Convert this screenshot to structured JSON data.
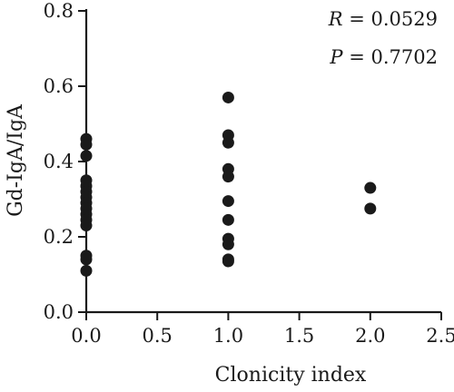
{
  "chart_data": {
    "type": "scatter",
    "title": "",
    "xlabel": "Clonicity index",
    "ylabel": "Gd-IgA/IgA",
    "xlim": [
      0.0,
      2.5
    ],
    "ylim": [
      0.0,
      0.8
    ],
    "xticks": [
      "0.0",
      "0.5",
      "1.0",
      "1.5",
      "2.0",
      "2.5"
    ],
    "yticks": [
      "0.0",
      "0.2",
      "0.4",
      "0.6",
      "0.8"
    ],
    "grid": false,
    "marker_color": "#1a1a1a",
    "annotations": {
      "r_var": "R",
      "r_value": " = 0.0529",
      "p_var": "P",
      "p_value": " = 0.7702"
    },
    "points": [
      {
        "x": 0.0,
        "y": 0.46
      },
      {
        "x": 0.0,
        "y": 0.445
      },
      {
        "x": 0.0,
        "y": 0.415
      },
      {
        "x": 0.0,
        "y": 0.35
      },
      {
        "x": 0.0,
        "y": 0.335
      },
      {
        "x": 0.0,
        "y": 0.32
      },
      {
        "x": 0.0,
        "y": 0.305
      },
      {
        "x": 0.0,
        "y": 0.29
      },
      {
        "x": 0.0,
        "y": 0.275
      },
      {
        "x": 0.0,
        "y": 0.26
      },
      {
        "x": 0.0,
        "y": 0.245
      },
      {
        "x": 0.0,
        "y": 0.23
      },
      {
        "x": 0.0,
        "y": 0.15
      },
      {
        "x": 0.0,
        "y": 0.14
      },
      {
        "x": 0.0,
        "y": 0.11
      },
      {
        "x": 1.0,
        "y": 0.57
      },
      {
        "x": 1.0,
        "y": 0.47
      },
      {
        "x": 1.0,
        "y": 0.45
      },
      {
        "x": 1.0,
        "y": 0.38
      },
      {
        "x": 1.0,
        "y": 0.36
      },
      {
        "x": 1.0,
        "y": 0.295
      },
      {
        "x": 1.0,
        "y": 0.245
      },
      {
        "x": 1.0,
        "y": 0.195
      },
      {
        "x": 1.0,
        "y": 0.18
      },
      {
        "x": 1.0,
        "y": 0.14
      },
      {
        "x": 1.0,
        "y": 0.135
      },
      {
        "x": 2.0,
        "y": 0.33
      },
      {
        "x": 2.0,
        "y": 0.275
      }
    ]
  }
}
